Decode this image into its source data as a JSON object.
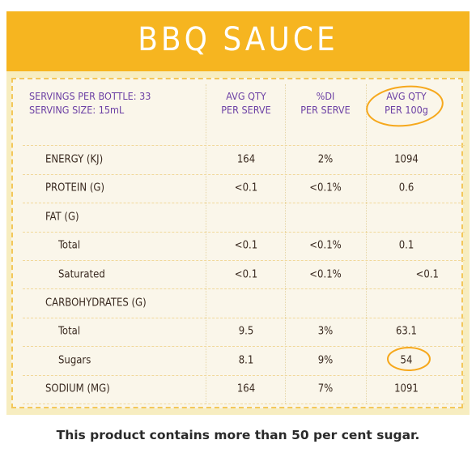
{
  "header": {
    "title": "BBQ SAUCE"
  },
  "table": {
    "serving_info": [
      "SERVINGS PER BOTTLE: 33",
      "SERVING SIZE: 15mL"
    ],
    "column_headers": [
      [
        "AVG QTY",
        "PER SERVE"
      ],
      [
        "%DI",
        "PER SERVE"
      ],
      [
        "AVG QTY",
        "PER 100g"
      ]
    ],
    "rows": [
      {
        "label": "ENERGY (KJ)",
        "cells": [
          "164",
          "2%",
          "1094"
        ]
      },
      {
        "label": "PROTEIN (G)",
        "cells": [
          "<0.1",
          "<0.1%",
          "0.6"
        ]
      },
      {
        "label": "FAT (G)",
        "items": [
          {
            "label": "Total",
            "cells": [
              "<0.1",
              "<0.1%",
              "0.1"
            ]
          },
          {
            "label": "Saturated",
            "cells": [
              "<0.1",
              "<0.1%",
              "<0.1"
            ]
          }
        ]
      },
      {
        "label": "CARBOHYDRATES (G)",
        "items": [
          {
            "label": "Total",
            "cells": [
              "9.5",
              "3%",
              "63.1"
            ]
          },
          {
            "label": "Sugars",
            "cells": [
              "8.1",
              "9%",
              "54"
            ]
          }
        ]
      },
      {
        "label": "SODIUM (MG)",
        "cells": [
          "164",
          "7%",
          "1091"
        ]
      }
    ]
  },
  "footer": {
    "note": "This product contains more than 50 per cent sugar."
  }
}
